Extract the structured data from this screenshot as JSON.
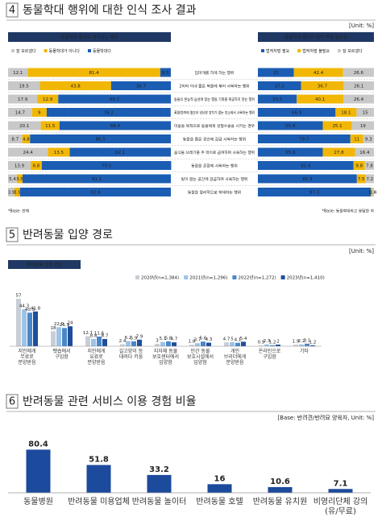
{
  "sections": [
    {
      "number": "4",
      "title": "동물학대 행위에 대한 인식 조사 결과",
      "unit": "[Unit: %]"
    },
    {
      "number": "5",
      "title": "반려동물 입양 경로",
      "unit": "[Unit: %]"
    },
    {
      "number": "6",
      "title": "반려동물 관련 서비스 이용 경험 비율",
      "unit": "[Base: 반려견/반려묘 양육자, Unit: %]"
    }
  ],
  "chart_data": [
    {
      "type": "stacked_bar_h",
      "title": "동물학대 행위로 생각되는 행위",
      "xlim": [
        0,
        100
      ],
      "note": "*Base: 전체",
      "categories": [
        "입마개를 하게 하는 행위",
        "2미터 이내 짧은 목줄에 묶어 사육하는 행위",
        "동물의 본능적 습성에 맞는 행동 기회를 제공하지 않는 행위",
        "폭염/한파에 별도의 냉난방 장치가 없는 장소에서 사육하는 행위",
        "미용을 목적으로 동물에게 성형수술을 시키는 경우",
        "동물을 좁은 공간에 감금 사육하는 행위",
        "음식물 쓰레기를 주 먹이로 급여하며 사육하는 행위",
        "동물을 혼잡에 사육하는 행위",
        "빛이 없는 공간에 감금하여 사육하는 행위",
        "동물을 물리적으로 학대하는 행위"
      ],
      "series": [
        {
          "name": "잘 모르겠다",
          "color": "#c8c8c8",
          "values": [
            12.1,
            19.5,
            17.9,
            14.7,
            20.1,
            8.7,
            24.4,
            13.9,
            5.4,
            3.9
          ]
        },
        {
          "name": "동물학대가 아니다",
          "color": "#f2b705",
          "values": [
            81.4,
            43.8,
            12.9,
            9,
            11.5,
            4.8,
            13.5,
            6.8,
            3.5,
            3.5
          ]
        },
        {
          "name": "동물학대다",
          "color": "#1b5db3",
          "values": [
            6.5,
            36.7,
            69.2,
            76.2,
            68.4,
            86.5,
            62.1,
            79.5,
            91.1,
            92.6
          ]
        }
      ]
    },
    {
      "type": "stacked_bar_h",
      "title": "동물학대 행위의 법적 처벌 필요성",
      "xlim": [
        0,
        100
      ],
      "note": "*Base: 동물학대라고 응답한 자",
      "series": [
        {
          "name": "법적처벌 필요",
          "color": "#1b5db3",
          "values": [
            31.0,
            37.2,
            33.5,
            66.9,
            55.9,
            79.7,
            55.9,
            82.4,
            85.3,
            97.3
          ]
        },
        {
          "name": "법적처벌 불필요",
          "color": "#f2b705",
          "values": [
            42.4,
            36.7,
            40.1,
            18.1,
            25.1,
            11.0,
            27.8,
            9.8,
            7.5,
            1.3
          ]
        },
        {
          "name": "잘 모르겠다",
          "color": "#c8c8c8",
          "values": [
            26.6,
            26.1,
            26.4,
            15.0,
            19.0,
            9.3,
            16.4,
            7.8,
            7.2,
            1.4
          ]
        }
      ]
    },
    {
      "type": "bar",
      "title": "반려동물 입양 경로",
      "ylim": [
        0,
        60
      ],
      "categories": [
        "지인에게 무료로 분양받음",
        "펫숍에서 구입함",
        "지인에게 유료로 분양받음",
        "길고양이 등 데려다 키움",
        "지자체 동물 보호센터에서 입양함",
        "민간 동물 보호시설에서 입양함",
        "개인 브리더에게 분양받음",
        "온라인으로 구입함",
        "기타"
      ],
      "series": [
        {
          "name": "2020년(n=1,384)",
          "color": "#c9ced6",
          "values": [
            57.0,
            18.0,
            12.1,
            2.4,
            3.0,
            1.8,
            4.7,
            0.9,
            1.9
          ]
        },
        {
          "name": "2021년(n=1,296)",
          "color": "#9dc3e6",
          "values": [
            44.3,
            22.9,
            8.8,
            6.2,
            5.1,
            3.7,
            5.0,
            2.3,
            2.2
          ]
        },
        {
          "name": "2022년(n=1,272)",
          "color": "#4a86c8",
          "values": [
            40.3,
            21.9,
            11.6,
            5.9,
            5.8,
            5.6,
            4.1,
            1.2,
            3.1
          ]
        },
        {
          "name": "2023년(n=1,410)",
          "color": "#1f4e9a",
          "values": [
            41.8,
            24.0,
            8.7,
            7.9,
            4.7,
            4.3,
            5.4,
            2.0,
            1.2
          ]
        }
      ]
    },
    {
      "type": "bar",
      "ylim": [
        0,
        90
      ],
      "color": "#1c4a9c",
      "categories": [
        "동물병원",
        "반려동물 미용업체",
        "반려동물 놀이터",
        "반려동물 호텔",
        "반려동물 유치원",
        "비영리단체 강의(유/무료)"
      ],
      "values": [
        80.4,
        51.8,
        33.2,
        16.0,
        10.6,
        7.1
      ]
    }
  ]
}
